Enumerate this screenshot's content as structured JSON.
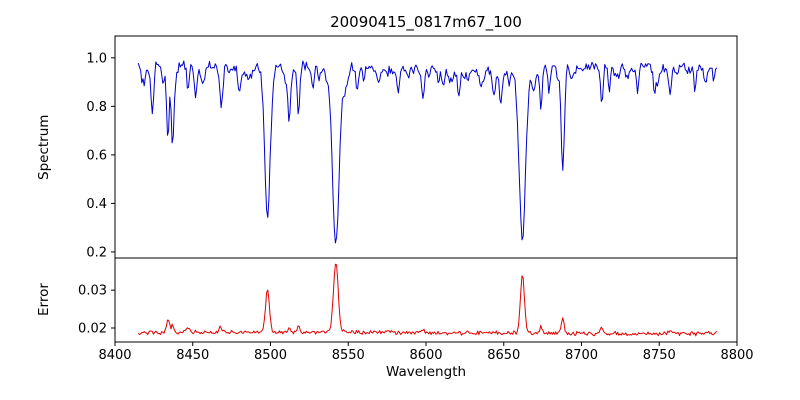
{
  "chart_data": {
    "type": "line",
    "title": "20090415_0817m67_100",
    "xlabel": "Wavelength",
    "grid": false,
    "legend": false,
    "xlim": [
      8400,
      8800
    ],
    "x_data_range": [
      8415,
      8787
    ],
    "x_ticks": [
      8400,
      8450,
      8500,
      8550,
      8600,
      8650,
      8700,
      8750,
      8800
    ],
    "x_tick_labels": [
      "8400",
      "8450",
      "8500",
      "8550",
      "8600",
      "8650",
      "8700",
      "8750",
      "8800"
    ],
    "panels": [
      {
        "name": "spectrum",
        "ylabel": "Spectrum",
        "color": "#0000cd",
        "ylim": [
          0.175,
          1.09
        ],
        "y_ticks": [
          0.2,
          0.4,
          0.6,
          0.8,
          1.0
        ],
        "y_tick_labels": [
          "0.2",
          "0.4",
          "0.6",
          "0.8",
          "1.0"
        ],
        "continuum_level": 0.97,
        "noise_amplitude": 0.016,
        "absorption_lines": [
          {
            "center": 8424,
            "depth": 0.16,
            "sigma": 0.8
          },
          {
            "center": 8431,
            "depth": 0.1,
            "sigma": 0.7
          },
          {
            "center": 8434,
            "depth": 0.3,
            "sigma": 0.8
          },
          {
            "center": 8437,
            "depth": 0.22,
            "sigma": 0.7
          },
          {
            "center": 8447,
            "depth": 0.1,
            "sigma": 0.7
          },
          {
            "center": 8452,
            "depth": 0.08,
            "sigma": 0.7
          },
          {
            "center": 8468,
            "depth": 0.13,
            "sigma": 0.9
          },
          {
            "center": 8480,
            "depth": 0.08,
            "sigma": 0.7
          },
          {
            "center": 8498,
            "depth": 0.575,
            "sigma": 1.8
          },
          {
            "center": 8512,
            "depth": 0.17,
            "sigma": 0.8
          },
          {
            "center": 8518,
            "depth": 0.19,
            "sigma": 0.8
          },
          {
            "center": 8527,
            "depth": 0.08,
            "sigma": 0.7
          },
          {
            "center": 8542,
            "depth": 0.74,
            "sigma": 2.2
          },
          {
            "center": 8556,
            "depth": 0.07,
            "sigma": 0.7
          },
          {
            "center": 8560,
            "depth": 0.08,
            "sigma": 0.7
          },
          {
            "center": 8582,
            "depth": 0.1,
            "sigma": 0.8
          },
          {
            "center": 8598,
            "depth": 0.13,
            "sigma": 0.8
          },
          {
            "center": 8611,
            "depth": 0.07,
            "sigma": 0.7
          },
          {
            "center": 8621,
            "depth": 0.1,
            "sigma": 0.8
          },
          {
            "center": 8648,
            "depth": 0.08,
            "sigma": 0.7
          },
          {
            "center": 8662,
            "depth": 0.7,
            "sigma": 2.0
          },
          {
            "center": 8674,
            "depth": 0.16,
            "sigma": 0.8
          },
          {
            "center": 8679,
            "depth": 0.1,
            "sigma": 0.7
          },
          {
            "center": 8688,
            "depth": 0.42,
            "sigma": 1.0
          },
          {
            "center": 8713,
            "depth": 0.14,
            "sigma": 0.8
          },
          {
            "center": 8718,
            "depth": 0.09,
            "sigma": 0.7
          },
          {
            "center": 8736,
            "depth": 0.09,
            "sigma": 0.7
          },
          {
            "center": 8747,
            "depth": 0.08,
            "sigma": 0.7
          },
          {
            "center": 8757,
            "depth": 0.11,
            "sigma": 0.8
          },
          {
            "center": 8773,
            "depth": 0.09,
            "sigma": 0.7
          },
          {
            "center": 8785,
            "depth": 0.07,
            "sigma": 0.7
          }
        ]
      },
      {
        "name": "error",
        "ylabel": "Error",
        "color": "#e00000",
        "ylim": [
          0.0163,
          0.0385
        ],
        "y_ticks": [
          0.02,
          0.03
        ],
        "y_tick_labels": [
          "0.02",
          "0.03"
        ],
        "baseline": 0.0185,
        "noise_amplitude": 0.0005,
        "peaks": [
          {
            "center": 8434,
            "height": 0.0035,
            "sigma": 1.0
          },
          {
            "center": 8437,
            "height": 0.002,
            "sigma": 0.8
          },
          {
            "center": 8447,
            "height": 0.0015,
            "sigma": 0.8
          },
          {
            "center": 8468,
            "height": 0.0015,
            "sigma": 0.8
          },
          {
            "center": 8498,
            "height": 0.0115,
            "sigma": 1.2
          },
          {
            "center": 8512,
            "height": 0.0015,
            "sigma": 0.8
          },
          {
            "center": 8518,
            "height": 0.0015,
            "sigma": 0.8
          },
          {
            "center": 8542,
            "height": 0.0185,
            "sigma": 1.5
          },
          {
            "center": 8598,
            "height": 0.001,
            "sigma": 0.8
          },
          {
            "center": 8662,
            "height": 0.0155,
            "sigma": 1.3
          },
          {
            "center": 8674,
            "height": 0.002,
            "sigma": 0.8
          },
          {
            "center": 8688,
            "height": 0.004,
            "sigma": 0.9
          },
          {
            "center": 8713,
            "height": 0.0015,
            "sigma": 0.8
          },
          {
            "center": 8757,
            "height": 0.001,
            "sigma": 0.8
          }
        ]
      }
    ]
  }
}
